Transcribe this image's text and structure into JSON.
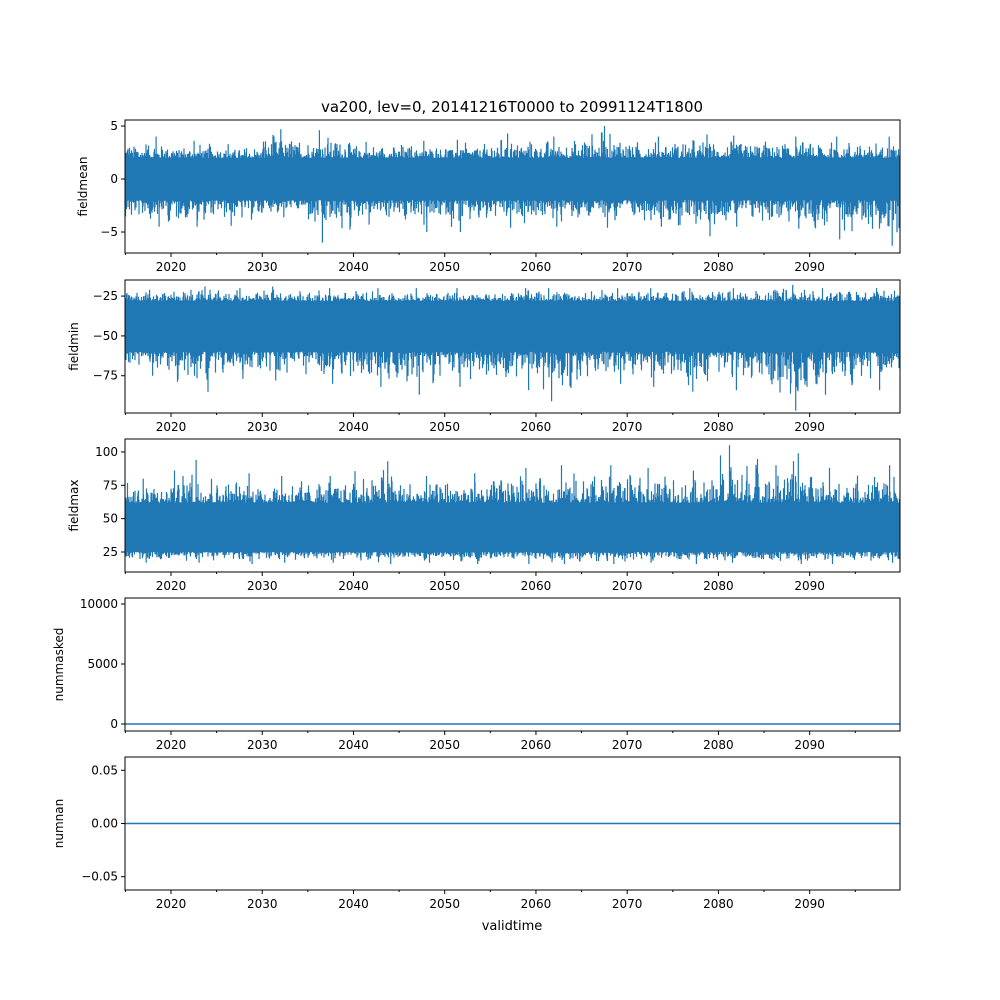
{
  "chart_data": {
    "type": "line",
    "title": "va200, lev=0, 20141216T0000 to 20991124T1800",
    "xlabel": "validtime",
    "xlim": [
      2014.96,
      2099.9
    ],
    "x_ticks": [
      2020,
      2030,
      2040,
      2050,
      2060,
      2070,
      2080,
      2090
    ],
    "x_tick_labels": [
      "2020",
      "2030",
      "2040",
      "2050",
      "2060",
      "2070",
      "2080",
      "2090"
    ],
    "x_minor_step": 5,
    "color": "#1f77b4",
    "envelope_bins": [
      2015,
      2020,
      2025,
      2030,
      2035,
      2040,
      2045,
      2050,
      2055,
      2060,
      2065,
      2070,
      2075,
      2080,
      2085,
      2090,
      2095
    ],
    "panels": [
      {
        "ylabel": "fieldmean",
        "ylim": [
          -6.98,
          5.57
        ],
        "yticks": [
          -5,
          0,
          5
        ],
        "ytick_labels": [
          "−5",
          "0",
          "5"
        ],
        "core": [
          -2,
          2
        ],
        "bin_max": [
          4.0,
          3.6,
          3.3,
          4.7,
          4.6,
          3.5,
          3.6,
          3.7,
          4.3,
          4.0,
          5.0,
          4.0,
          4.2,
          4.1,
          4.0,
          4.0,
          4.0
        ],
        "bin_min": [
          -4.5,
          -4.5,
          -4.4,
          -3.6,
          -6.0,
          -4.3,
          -5.0,
          -5.0,
          -4.6,
          -4.5,
          -4.6,
          -4.5,
          -5.4,
          -4.5,
          -4.7,
          -5.7,
          -6.3
        ]
      },
      {
        "ylabel": "fieldmin",
        "ylim": [
          -98.4,
          -14.9
        ],
        "yticks": [
          -25,
          -50,
          -75
        ],
        "ytick_labels": [
          "−25",
          "−50",
          "−75"
        ],
        "core": [
          -60,
          -28
        ],
        "bin_max": [
          -21,
          -19,
          -20,
          -19,
          -20,
          -20,
          -20,
          -20,
          -20,
          -20,
          -20,
          -20,
          -20,
          -20,
          -18,
          -20,
          -20
        ],
        "bin_min": [
          -75,
          -85,
          -77,
          -78,
          -80,
          -82,
          -87,
          -82,
          -84,
          -91,
          -80,
          -82,
          -85,
          -84,
          -97,
          -87,
          -84
        ]
      },
      {
        "ylabel": "fieldmax",
        "ylim": [
          10,
          109.7
        ],
        "yticks": [
          25,
          50,
          75,
          100
        ],
        "ytick_labels": [
          "25",
          "50",
          "75",
          "100"
        ],
        "core": [
          25,
          62
        ],
        "bin_max": [
          80,
          94,
          84,
          82,
          82,
          93,
          82,
          84,
          88,
          90,
          90,
          88,
          86,
          105,
          99,
          88,
          90
        ],
        "bin_min": [
          17,
          17,
          16,
          17,
          17,
          16,
          17,
          16,
          16,
          16,
          16,
          17,
          16,
          17,
          16,
          16,
          17
        ]
      },
      {
        "ylabel": "nummasked",
        "ylim": [
          -583,
          10500
        ],
        "yticks": [
          0,
          5000,
          10000
        ],
        "ytick_labels": [
          "0",
          "5000",
          "10000"
        ],
        "constant": 0
      },
      {
        "ylabel": "numnan",
        "ylim": [
          -0.0625,
          0.0625
        ],
        "yticks": [
          -0.05,
          0,
          0.05
        ],
        "ytick_labels": [
          "−0.05",
          "0.00",
          "0.05"
        ],
        "constant": 0
      }
    ]
  }
}
